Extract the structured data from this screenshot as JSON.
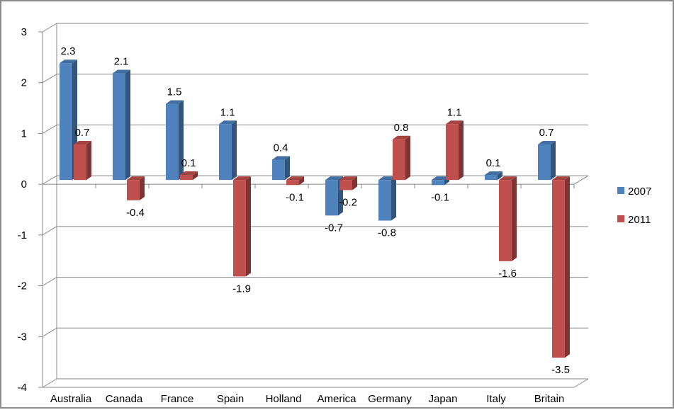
{
  "chart_data": {
    "type": "bar",
    "title": "",
    "xlabel": "",
    "ylabel": "",
    "categories": [
      "Australia",
      "Canada",
      "France",
      "Spain",
      "Holland",
      "America",
      "Germany",
      "Japan",
      "Italy",
      "Britain"
    ],
    "series": [
      {
        "name": "2007",
        "color": "#4f81bd",
        "values": [
          2.3,
          2.1,
          1.5,
          1.1,
          0.4,
          -0.7,
          -0.8,
          -0.1,
          0.1,
          0.7
        ],
        "labels": [
          "2.3",
          "2.1",
          "1.5",
          "1.1",
          "0.4",
          "-0.7",
          "-0.8",
          "-0.1",
          "0.1",
          "0.7"
        ]
      },
      {
        "name": "2011",
        "color": "#c0504d",
        "values": [
          0.7,
          -0.4,
          0.1,
          -1.9,
          -0.1,
          -0.2,
          0.8,
          1.1,
          -1.6,
          -3.5
        ],
        "labels": [
          "0.7",
          "-0.4",
          "0.1",
          "-1.9",
          "-0.1",
          "-0.2",
          "0.8",
          "1.1",
          "-1.6",
          "-3.5"
        ]
      }
    ],
    "ylim": [
      -4,
      3
    ],
    "yticks": [
      "3",
      "2",
      "1",
      "0",
      "-1",
      "-2",
      "-3",
      "-4"
    ],
    "grid": true,
    "legend": "right"
  }
}
